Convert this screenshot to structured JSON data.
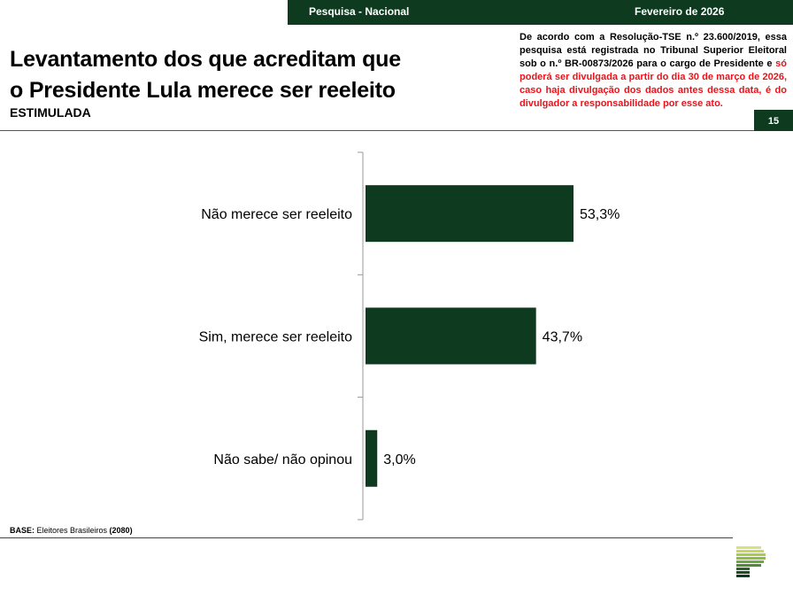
{
  "header": {
    "survey": "Pesquisa - Nacional",
    "date": "Fevereiro de 2026",
    "page": "15"
  },
  "title_line1": "Levantamento dos que acreditam que",
  "title_line2": "o Presidente Lula merece ser reeleito",
  "subtitle": "ESTIMULADA",
  "notice": {
    "black": "De acordo com a Resolução-TSE n.º 23.600/2019, essa pesquisa está registrada no Tribunal Superior Eleitoral sob o n.º BR-00873/2026 para o cargo de Presidente e ",
    "red": "só poderá ser divulgada a partir do dia 30 de março de 2026, caso haja divulgação dos dados antes dessa data, é do divulgador a responsabilidade por esse ato."
  },
  "base": {
    "label": "BASE:",
    "text": " Eleitores Brasileiros ",
    "n": "(2080)"
  },
  "colors": {
    "bar": "#0e3b20",
    "accent": "#e8141b"
  },
  "chart_data": {
    "type": "bar",
    "orientation": "horizontal",
    "categories": [
      "Não merece ser reeleito",
      "Sim, merece ser reeleito",
      "Não sabe/ não opinou"
    ],
    "values": [
      53.3,
      43.7,
      3.0
    ],
    "labels": [
      "53,3%",
      "43,7%",
      "3,0%"
    ],
    "unit": "%",
    "xlim": [
      0,
      100
    ]
  }
}
